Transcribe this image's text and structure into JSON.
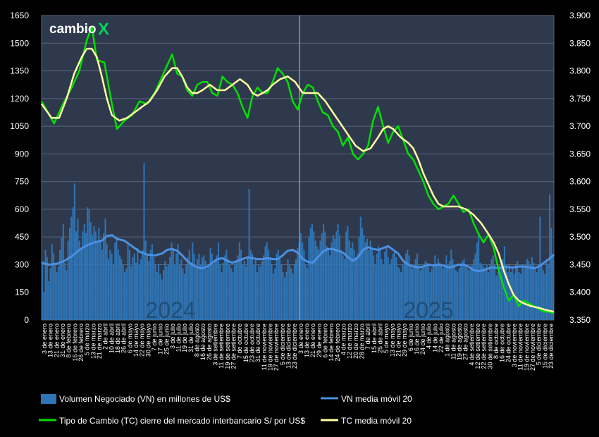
{
  "logo": {
    "text": "cambio",
    "mark": "X",
    "mark_color": "#00d25b"
  },
  "chart_data": {
    "type": "combo-bar-line",
    "left_axis": {
      "min": 0,
      "max": 1650,
      "ticks": [
        0,
        150,
        300,
        450,
        600,
        750,
        900,
        1050,
        1200,
        1350,
        1500,
        1650
      ]
    },
    "right_axis": {
      "min": 3.35,
      "max": 3.9,
      "ticks": [
        "3.350",
        "3.400",
        "3.450",
        "3.500",
        "3.550",
        "3.600",
        "3.650",
        "3.700",
        "3.750",
        "3.800",
        "3.850",
        "3.900"
      ]
    },
    "grid": true,
    "year_labels": [
      "2024",
      "2025"
    ],
    "legend": {
      "placement": "bottom",
      "items": [
        {
          "label": "Volumen Negociado (VN) en millones de US$",
          "color": "#2e75b6",
          "kind": "bar"
        },
        {
          "label": "VN media móvil 20",
          "color": "#4a90e2",
          "kind": "line"
        },
        {
          "label": "Tipo de Cambio (TC) cierre del mercado interbancario S/ por US$",
          "color": "#00e000",
          "kind": "line"
        },
        {
          "label": "TC media móvil 20",
          "color": "#ffffa0",
          "kind": "line"
        }
      ]
    },
    "x_tick_labels": [
      "3 de enero",
      "13 de enero",
      "21 de enero",
      "31 de enero",
      "8 de febrero",
      "16 de febrero",
      "26 de febrero",
      "5 de marzo",
      "13 de marzo",
      "21 de marzo",
      "2 de abril",
      "10 de abril",
      "18 de abril",
      "26 de abril",
      "6 de mayo",
      "14 de mayo",
      "22 de mayo",
      "30 de mayo",
      "7 de junio",
      "17 de junio",
      "25 de junio",
      "3 de julio",
      "11 de julio",
      "19 de julio",
      "31 de julio",
      "8 de agosto",
      "16 de agosto",
      "26 de agosto",
      "3 de setiembre",
      "11 de setiembre",
      "19 de setiembre",
      "27 de setiembre",
      "7 de octubre",
      "15 de octubre",
      "23 de octubre",
      "31 de octubre",
      "11 de noviembre",
      "19 de noviembre",
      "27 de noviembre",
      "5 de diciembre",
      "13 de diciembre",
      "23 de diciembre",
      "3 de enero",
      "13 de enero",
      "21 de enero",
      "29 de enero",
      "6 de febrero",
      "14 de febrero",
      "24 de febrero",
      "4 de marzo",
      "12 de marzo",
      "20 de marzo",
      "28 de marzo",
      "7 de abril",
      "15 de abril",
      "25 de abril",
      "5 de mayo",
      "13 de mayo",
      "21 de mayo",
      "29 de mayo",
      "6 de junio",
      "16 de junio",
      "24 de junio",
      "4 de julio",
      "14 de julio",
      "22 de julio",
      "1 de agosto",
      "11 de agosto",
      "19 de agosto",
      "27 de agosto",
      "4 de setiembre",
      "12 de setiembre",
      "22 de setiembre",
      "30 de setiembre",
      "8 de octubre",
      "16 de octubre",
      "24 de octubre",
      "3 de noviembre",
      "11 de noviembre",
      "19 de noviembre",
      "27 de noviembre",
      "5 de diciembre",
      "15 de diciembre",
      "23 de diciembre"
    ],
    "tc_close": [
      [
        0,
        3.745
      ],
      [
        5,
        3.705
      ],
      [
        8,
        3.735
      ],
      [
        12,
        3.77
      ],
      [
        15,
        3.8
      ],
      [
        18,
        3.855
      ],
      [
        20,
        3.88
      ],
      [
        22,
        3.82
      ],
      [
        25,
        3.815
      ],
      [
        28,
        3.74
      ],
      [
        30,
        3.695
      ],
      [
        33,
        3.71
      ],
      [
        36,
        3.72
      ],
      [
        39,
        3.745
      ],
      [
        42,
        3.74
      ],
      [
        45,
        3.76
      ],
      [
        48,
        3.79
      ],
      [
        50,
        3.81
      ],
      [
        52,
        3.83
      ],
      [
        54,
        3.795
      ],
      [
        56,
        3.79
      ],
      [
        58,
        3.765
      ],
      [
        60,
        3.755
      ],
      [
        62,
        3.775
      ],
      [
        64,
        3.78
      ],
      [
        66,
        3.78
      ],
      [
        68,
        3.76
      ],
      [
        70,
        3.755
      ],
      [
        72,
        3.79
      ],
      [
        74,
        3.78
      ],
      [
        76,
        3.775
      ],
      [
        78,
        3.76
      ],
      [
        80,
        3.735
      ],
      [
        82,
        3.715
      ],
      [
        84,
        3.755
      ],
      [
        86,
        3.77
      ],
      [
        88,
        3.76
      ],
      [
        90,
        3.76
      ],
      [
        92,
        3.78
      ],
      [
        94,
        3.805
      ],
      [
        96,
        3.795
      ],
      [
        98,
        3.78
      ],
      [
        100,
        3.745
      ],
      [
        102,
        3.73
      ],
      [
        104,
        3.76
      ],
      [
        106,
        3.775
      ],
      [
        108,
        3.77
      ],
      [
        110,
        3.745
      ],
      [
        112,
        3.725
      ],
      [
        114,
        3.72
      ],
      [
        116,
        3.7
      ],
      [
        118,
        3.69
      ],
      [
        120,
        3.665
      ],
      [
        122,
        3.68
      ],
      [
        124,
        3.65
      ],
      [
        126,
        3.64
      ],
      [
        128,
        3.65
      ],
      [
        130,
        3.665
      ],
      [
        132,
        3.71
      ],
      [
        134,
        3.735
      ],
      [
        136,
        3.7
      ],
      [
        138,
        3.67
      ],
      [
        140,
        3.69
      ],
      [
        142,
        3.7
      ],
      [
        144,
        3.675
      ],
      [
        146,
        3.65
      ],
      [
        148,
        3.64
      ],
      [
        150,
        3.62
      ],
      [
        152,
        3.6
      ],
      [
        154,
        3.575
      ],
      [
        156,
        3.56
      ],
      [
        158,
        3.55
      ],
      [
        160,
        3.555
      ],
      [
        162,
        3.56
      ],
      [
        164,
        3.575
      ],
      [
        166,
        3.56
      ],
      [
        168,
        3.545
      ],
      [
        170,
        3.55
      ],
      [
        172,
        3.525
      ],
      [
        174,
        3.505
      ],
      [
        176,
        3.49
      ],
      [
        178,
        3.505
      ],
      [
        180,
        3.48
      ],
      [
        182,
        3.44
      ],
      [
        184,
        3.41
      ],
      [
        186,
        3.385
      ],
      [
        188,
        3.395
      ],
      [
        190,
        3.375
      ],
      [
        192,
        3.385
      ],
      [
        194,
        3.38
      ],
      [
        196,
        3.375
      ],
      [
        198,
        3.37
      ],
      [
        200,
        3.365
      ],
      [
        202,
        3.365
      ],
      [
        204,
        3.362
      ]
    ],
    "tc_ma20": [
      [
        0,
        3.74
      ],
      [
        4,
        3.715
      ],
      [
        7,
        3.715
      ],
      [
        10,
        3.75
      ],
      [
        13,
        3.795
      ],
      [
        16,
        3.825
      ],
      [
        18,
        3.84
      ],
      [
        20,
        3.84
      ],
      [
        22,
        3.825
      ],
      [
        24,
        3.79
      ],
      [
        26,
        3.75
      ],
      [
        28,
        3.72
      ],
      [
        31,
        3.71
      ],
      [
        34,
        3.715
      ],
      [
        37,
        3.725
      ],
      [
        40,
        3.735
      ],
      [
        43,
        3.745
      ],
      [
        46,
        3.765
      ],
      [
        49,
        3.79
      ],
      [
        52,
        3.805
      ],
      [
        54,
        3.805
      ],
      [
        56,
        3.79
      ],
      [
        58,
        3.77
      ],
      [
        60,
        3.76
      ],
      [
        62,
        3.76
      ],
      [
        64,
        3.765
      ],
      [
        67,
        3.775
      ],
      [
        70,
        3.765
      ],
      [
        73,
        3.765
      ],
      [
        76,
        3.775
      ],
      [
        79,
        3.785
      ],
      [
        82,
        3.775
      ],
      [
        84,
        3.76
      ],
      [
        86,
        3.755
      ],
      [
        88,
        3.76
      ],
      [
        90,
        3.765
      ],
      [
        92,
        3.775
      ],
      [
        95,
        3.785
      ],
      [
        98,
        3.79
      ],
      [
        101,
        3.78
      ],
      [
        104,
        3.76
      ],
      [
        107,
        3.76
      ],
      [
        110,
        3.76
      ],
      [
        113,
        3.745
      ],
      [
        116,
        3.725
      ],
      [
        119,
        3.705
      ],
      [
        122,
        3.685
      ],
      [
        125,
        3.665
      ],
      [
        128,
        3.655
      ],
      [
        131,
        3.66
      ],
      [
        134,
        3.68
      ],
      [
        136,
        3.695
      ],
      [
        138,
        3.7
      ],
      [
        140,
        3.695
      ],
      [
        143,
        3.68
      ],
      [
        146,
        3.67
      ],
      [
        148,
        3.66
      ],
      [
        150,
        3.64
      ],
      [
        152,
        3.615
      ],
      [
        154,
        3.595
      ],
      [
        156,
        3.575
      ],
      [
        158,
        3.56
      ],
      [
        160,
        3.555
      ],
      [
        163,
        3.555
      ],
      [
        166,
        3.555
      ],
      [
        169,
        3.55
      ],
      [
        172,
        3.54
      ],
      [
        175,
        3.525
      ],
      [
        178,
        3.505
      ],
      [
        180,
        3.49
      ],
      [
        182,
        3.47
      ],
      [
        184,
        3.44
      ],
      [
        186,
        3.415
      ],
      [
        188,
        3.395
      ],
      [
        190,
        3.385
      ],
      [
        192,
        3.38
      ],
      [
        195,
        3.375
      ],
      [
        198,
        3.372
      ],
      [
        201,
        3.368
      ],
      [
        204,
        3.365
      ]
    ],
    "vn_ma20": [
      [
        0,
        310
      ],
      [
        3,
        300
      ],
      [
        6,
        305
      ],
      [
        9,
        320
      ],
      [
        12,
        345
      ],
      [
        15,
        380
      ],
      [
        18,
        405
      ],
      [
        21,
        420
      ],
      [
        24,
        430
      ],
      [
        26,
        455
      ],
      [
        28,
        460
      ],
      [
        30,
        440
      ],
      [
        33,
        430
      ],
      [
        36,
        400
      ],
      [
        39,
        370
      ],
      [
        42,
        355
      ],
      [
        45,
        350
      ],
      [
        48,
        360
      ],
      [
        50,
        380
      ],
      [
        52,
        385
      ],
      [
        54,
        375
      ],
      [
        56,
        350
      ],
      [
        58,
        320
      ],
      [
        60,
        300
      ],
      [
        62,
        285
      ],
      [
        64,
        280
      ],
      [
        66,
        290
      ],
      [
        68,
        310
      ],
      [
        70,
        330
      ],
      [
        72,
        335
      ],
      [
        74,
        320
      ],
      [
        76,
        310
      ],
      [
        78,
        320
      ],
      [
        80,
        330
      ],
      [
        82,
        340
      ],
      [
        84,
        335
      ],
      [
        86,
        330
      ],
      [
        88,
        330
      ],
      [
        90,
        335
      ],
      [
        92,
        330
      ],
      [
        94,
        330
      ],
      [
        96,
        350
      ],
      [
        98,
        375
      ],
      [
        100,
        380
      ],
      [
        102,
        365
      ],
      [
        104,
        330
      ],
      [
        106,
        315
      ],
      [
        108,
        310
      ],
      [
        110,
        340
      ],
      [
        112,
        370
      ],
      [
        114,
        385
      ],
      [
        116,
        385
      ],
      [
        118,
        375
      ],
      [
        120,
        365
      ],
      [
        122,
        340
      ],
      [
        124,
        320
      ],
      [
        126,
        340
      ],
      [
        128,
        380
      ],
      [
        130,
        395
      ],
      [
        132,
        385
      ],
      [
        134,
        380
      ],
      [
        136,
        390
      ],
      [
        138,
        400
      ],
      [
        140,
        380
      ],
      [
        142,
        360
      ],
      [
        144,
        320
      ],
      [
        146,
        300
      ],
      [
        148,
        290
      ],
      [
        150,
        285
      ],
      [
        152,
        290
      ],
      [
        154,
        300
      ],
      [
        156,
        295
      ],
      [
        158,
        300
      ],
      [
        160,
        295
      ],
      [
        162,
        285
      ],
      [
        164,
        290
      ],
      [
        166,
        300
      ],
      [
        168,
        300
      ],
      [
        170,
        290
      ],
      [
        172,
        270
      ],
      [
        174,
        265
      ],
      [
        176,
        270
      ],
      [
        178,
        280
      ],
      [
        180,
        285
      ],
      [
        182,
        280
      ],
      [
        184,
        290
      ],
      [
        186,
        285
      ],
      [
        188,
        285
      ],
      [
        190,
        290
      ],
      [
        192,
        290
      ],
      [
        194,
        285
      ],
      [
        196,
        280
      ],
      [
        198,
        290
      ],
      [
        200,
        310
      ],
      [
        202,
        330
      ],
      [
        204,
        355
      ]
    ],
    "vn_bars": [
      320,
      150,
      380,
      340,
      210,
      280,
      410,
      360,
      300,
      260,
      290,
      380,
      450,
      520,
      310,
      270,
      430,
      500,
      560,
      610,
      740,
      480,
      550,
      430,
      390,
      480,
      520,
      470,
      610,
      600,
      530,
      460,
      510,
      480,
      420,
      500,
      430,
      380,
      470,
      550,
      410,
      330,
      380,
      360,
      300,
      420,
      440,
      380,
      350,
      330,
      300,
      260,
      280,
      420,
      380,
      290,
      340,
      360,
      310,
      390,
      300,
      330,
      380,
      850,
      430,
      350,
      320,
      380,
      410,
      340,
      300,
      260,
      300,
      250,
      220,
      270,
      320,
      290,
      300,
      340,
      420,
      380,
      300,
      360,
      410,
      300,
      330,
      280,
      250,
      300,
      340,
      380,
      310,
      420,
      360,
      280,
      330,
      360,
      300,
      340,
      350,
      320,
      280,
      300,
      390,
      360,
      300,
      330,
      350,
      420,
      300,
      260,
      310,
      350,
      380,
      330,
      300,
      280,
      260,
      300,
      320,
      350,
      420,
      380,
      300,
      320,
      290,
      340,
      710,
      380,
      360,
      300,
      330,
      260,
      300,
      290,
      320,
      350,
      400,
      420,
      380,
      340,
      300,
      250,
      280,
      360,
      380,
      330,
      300,
      260,
      230,
      260,
      330,
      300,
      280,
      250,
      300,
      330,
      390,
      420,
      470,
      420,
      380,
      300,
      280,
      450,
      500,
      520,
      480,
      430,
      400,
      380,
      430,
      470,
      520,
      480,
      400,
      380,
      350,
      420,
      460,
      440,
      480,
      520,
      460,
      380,
      350,
      330,
      480,
      510,
      430,
      390,
      420,
      380,
      340,
      360,
      450,
      560,
      500,
      460,
      420,
      440,
      380,
      430,
      380,
      350,
      300,
      360,
      400,
      380,
      330,
      300,
      370,
      390,
      340,
      300,
      330,
      360,
      380,
      340,
      290,
      280,
      260,
      300,
      320,
      360,
      380,
      350,
      300,
      280,
      300,
      330,
      360,
      300,
      270,
      290,
      300,
      320,
      310,
      300,
      260,
      280,
      300,
      350,
      300,
      330,
      310,
      300,
      280,
      290,
      350,
      300,
      320,
      380,
      330,
      300,
      270,
      260,
      280,
      300,
      320,
      330,
      300,
      280,
      270,
      290,
      300,
      330,
      360,
      420,
      460,
      310,
      300,
      290,
      280,
      300,
      260,
      300,
      330,
      350,
      300,
      240,
      260,
      300,
      280,
      330,
      400,
      300,
      260,
      300,
      260,
      280,
      250,
      300,
      320,
      260,
      250,
      300,
      280,
      300,
      330,
      320,
      300,
      340,
      310,
      280,
      260,
      300,
      560,
      300,
      270,
      250,
      330,
      300,
      680,
      500,
      350
    ]
  }
}
